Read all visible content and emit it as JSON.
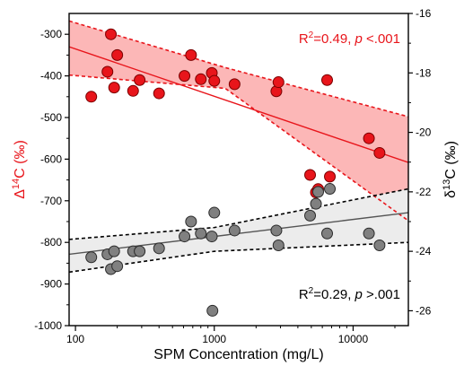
{
  "chart_data": {
    "type": "scatter",
    "xlabel": "SPM Concentration (mg/L)",
    "x_scale": "log",
    "xlim": [
      90,
      25000
    ],
    "x_ticks": [
      {
        "value": 100,
        "label": "100"
      },
      {
        "value": 1000,
        "label": "1000"
      },
      {
        "value": 10000,
        "label": "10000"
      }
    ],
    "left_axis": {
      "label_main": "Δ",
      "label_sup": "14",
      "label_rest": "C (‰)",
      "color": "#e8151b",
      "ylim": [
        -1000,
        -250
      ],
      "ticks": [
        {
          "value": -300,
          "label": "-300"
        },
        {
          "value": -400,
          "label": "-400"
        },
        {
          "value": -500,
          "label": "-500"
        },
        {
          "value": -600,
          "label": "-600"
        },
        {
          "value": -700,
          "label": "-700"
        },
        {
          "value": -800,
          "label": "-800"
        },
        {
          "value": -900,
          "label": "-900"
        },
        {
          "value": -1000,
          "label": "-1000"
        }
      ]
    },
    "right_axis": {
      "label_main": "δ",
      "label_sup": "13",
      "label_rest": "C (‰)",
      "color": "#000000",
      "ylim": [
        -26.5,
        -16
      ],
      "ticks": [
        {
          "value": -16,
          "label": "-16"
        },
        {
          "value": -18,
          "label": "-18"
        },
        {
          "value": -20,
          "label": "-20"
        },
        {
          "value": -22,
          "label": "-22"
        },
        {
          "value": -24,
          "label": "-24"
        },
        {
          "value": -26,
          "label": "-26"
        }
      ]
    },
    "series": [
      {
        "axis": "left",
        "color": "#e8151b",
        "band_color": "#fcb7b7",
        "points": [
          {
            "x": 130,
            "y": -450
          },
          {
            "x": 170,
            "y": -390
          },
          {
            "x": 180,
            "y": -300
          },
          {
            "x": 190,
            "y": -428
          },
          {
            "x": 200,
            "y": -350
          },
          {
            "x": 260,
            "y": -436
          },
          {
            "x": 290,
            "y": -410
          },
          {
            "x": 400,
            "y": -442
          },
          {
            "x": 610,
            "y": -400
          },
          {
            "x": 680,
            "y": -350
          },
          {
            "x": 800,
            "y": -408
          },
          {
            "x": 960,
            "y": -393
          },
          {
            "x": 1000,
            "y": -412
          },
          {
            "x": 1400,
            "y": -420
          },
          {
            "x": 2800,
            "y": -437
          },
          {
            "x": 2900,
            "y": -415
          },
          {
            "x": 4900,
            "y": -638
          },
          {
            "x": 5400,
            "y": -680
          },
          {
            "x": 5600,
            "y": -672
          },
          {
            "x": 6500,
            "y": -410
          },
          {
            "x": 6800,
            "y": -642
          },
          {
            "x": 13000,
            "y": -550
          },
          {
            "x": 15500,
            "y": -585
          }
        ],
        "fit": {
          "x": [
            90,
            25000
          ],
          "y": [
            -330,
            -608
          ]
        },
        "ci_upper": {
          "x": [
            90,
            1200,
            25000
          ],
          "y": [
            -268,
            -380,
            -498
          ]
        },
        "ci_lower": {
          "x": [
            90,
            1200,
            25000
          ],
          "y": [
            -398,
            -430,
            -748
          ]
        }
      },
      {
        "axis": "right",
        "color": "#808080",
        "band_color": "#ececec",
        "points": [
          {
            "x": 130,
            "y": -24.2
          },
          {
            "x": 170,
            "y": -24.1
          },
          {
            "x": 180,
            "y": -24.6
          },
          {
            "x": 190,
            "y": -24.0
          },
          {
            "x": 200,
            "y": -24.5
          },
          {
            "x": 260,
            "y": -24.0
          },
          {
            "x": 290,
            "y": -24.0
          },
          {
            "x": 400,
            "y": -23.9
          },
          {
            "x": 610,
            "y": -23.5
          },
          {
            "x": 680,
            "y": -23.0
          },
          {
            "x": 800,
            "y": -23.4
          },
          {
            "x": 960,
            "y": -23.5
          },
          {
            "x": 970,
            "y": -26.0
          },
          {
            "x": 1000,
            "y": -22.7
          },
          {
            "x": 1400,
            "y": -23.3
          },
          {
            "x": 2800,
            "y": -23.3
          },
          {
            "x": 2900,
            "y": -23.8
          },
          {
            "x": 4900,
            "y": -22.8
          },
          {
            "x": 5400,
            "y": -22.4
          },
          {
            "x": 5600,
            "y": -22.0
          },
          {
            "x": 6500,
            "y": -23.4
          },
          {
            "x": 6800,
            "y": -21.9
          },
          {
            "x": 13000,
            "y": -23.4
          },
          {
            "x": 15500,
            "y": -23.8
          }
        ],
        "fit": {
          "x": [
            90,
            25000
          ],
          "y": [
            -24.1,
            -22.7
          ]
        },
        "ci_upper": {
          "x": [
            90,
            1000,
            25000
          ],
          "y": [
            -23.6,
            -23.2,
            -21.9
          ]
        },
        "ci_lower": {
          "x": [
            90,
            1000,
            25000
          ],
          "y": [
            -24.7,
            -24.0,
            -23.7
          ]
        }
      }
    ],
    "annotations": {
      "red": {
        "pre": "R",
        "sup": "2",
        "mid": "=0.49, ",
        "ital": "p",
        "post": " <.001",
        "color": "#e8151b"
      },
      "black": {
        "pre": "R",
        "sup": "2",
        "mid": "=0.29, ",
        "ital": "p",
        "post": " >.001",
        "color": "#000000"
      }
    }
  }
}
